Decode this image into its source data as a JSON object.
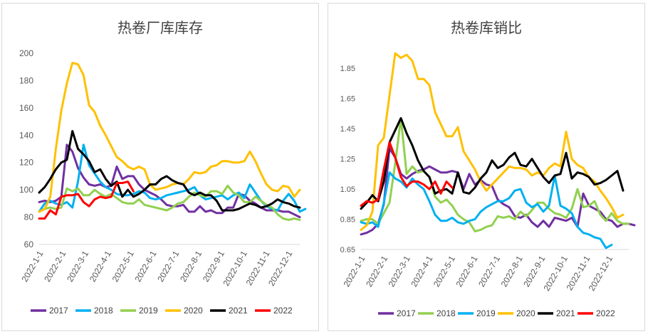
{
  "chart_data": [
    {
      "type": "line",
      "title": "热卷厂库库存",
      "ylim": [
        60,
        200
      ],
      "yticks": [
        60,
        80,
        100,
        120,
        140,
        160,
        180,
        200
      ],
      "grid": false,
      "legend_position": "bottom",
      "x_tick_labels": [
        "2022-1-1",
        "2022-2-1",
        "2022-3-1",
        "2022-4-1",
        "2022-5-1",
        "2022-6-1",
        "2022-7-1",
        "2022-8-1",
        "2022-9-1",
        "2022-10-1",
        "2022-11-1",
        "2022-12-1"
      ],
      "series": [
        {
          "name": "2017",
          "color": "#7030a0",
          "values": [
            91,
            92,
            91,
            92,
            95,
            133,
            128,
            116,
            109,
            104,
            103,
            104,
            102,
            103,
            117,
            108,
            110,
            110,
            104,
            100,
            98,
            96,
            93,
            89,
            88,
            88,
            89,
            84,
            84,
            88,
            84,
            85,
            83,
            83,
            87,
            87,
            97,
            96,
            92,
            90,
            87,
            85,
            85,
            85,
            84,
            84,
            82,
            80
          ]
        },
        {
          "name": "2018",
          "color": "#00b0f0",
          "values": [
            84,
            90,
            92,
            90,
            89,
            91,
            87,
            106,
            133,
            118,
            112,
            106,
            102,
            100,
            97,
            96,
            96,
            97,
            99,
            98,
            94,
            93,
            94,
            96,
            97,
            98,
            99,
            100,
            102,
            96,
            93,
            94,
            95,
            96,
            93,
            96,
            98,
            94,
            104,
            98,
            92,
            88,
            86,
            85,
            92,
            97,
            92,
            84,
            86
          ]
        },
        {
          "name": "2019",
          "color": "#92d050",
          "values": [
            84,
            86,
            87,
            86,
            87,
            101,
            99,
            101,
            96,
            96,
            100,
            97,
            95,
            97,
            94,
            91,
            90,
            90,
            93,
            89,
            88,
            87,
            86,
            85,
            87,
            90,
            91,
            95,
            98,
            96,
            95,
            99,
            99,
            97,
            103,
            98,
            96,
            91,
            91,
            95,
            92,
            89,
            87,
            82,
            79,
            78,
            79,
            78
          ]
        },
        {
          "name": "2020",
          "color": "#ffc000",
          "values": [
            84,
            86,
            95,
            130,
            158,
            178,
            193,
            192,
            184,
            162,
            157,
            147,
            140,
            132,
            124,
            121,
            117,
            115,
            117,
            115,
            104,
            100,
            101,
            102,
            104,
            105,
            104,
            108,
            113,
            112,
            113,
            117,
            118,
            121,
            121,
            120,
            120,
            121,
            128,
            121,
            112,
            104,
            100,
            99,
            103,
            102,
            95,
            100
          ]
        },
        {
          "name": "2021",
          "color": "#000000",
          "values": [
            98,
            102,
            108,
            115,
            120,
            122,
            143,
            130,
            126,
            121,
            113,
            115,
            108,
            103,
            106,
            95,
            100,
            95,
            97,
            100,
            104,
            104,
            108,
            110,
            107,
            105,
            104,
            98,
            96,
            98,
            96,
            96,
            92,
            85,
            85,
            85,
            86,
            88,
            90,
            89,
            87,
            88,
            90,
            93,
            91,
            90,
            88,
            87
          ]
        },
        {
          "name": "2022",
          "color": "#ff0000",
          "values": [
            79,
            79,
            85,
            82,
            95,
            96,
            96,
            97,
            91,
            88,
            93,
            95,
            94,
            95,
            105,
            105,
            106,
            99,
            null,
            null,
            null,
            null,
            null,
            null,
            null,
            null,
            null,
            null,
            null,
            null,
            null,
            null,
            null,
            null,
            null,
            null,
            null,
            null,
            null,
            null,
            null,
            null,
            null,
            null,
            null,
            null,
            null,
            null
          ]
        }
      ]
    },
    {
      "type": "line",
      "title": "热卷库销比",
      "ylim": [
        0.65,
        1.95
      ],
      "yticks": [
        "0.65",
        "0.85",
        "1.05",
        "1.25",
        "1.45",
        "1.65",
        "1.85"
      ],
      "grid": false,
      "legend_position": "bottom",
      "x_tick_labels": [
        "2022-1-1",
        "2022-2-1",
        "2022-3-1",
        "2022-4-1",
        "2022-5-1",
        "2022-6-1",
        "2022-7-1",
        "2022-8-1",
        "2022-9-1",
        "2022-10-1",
        "2022-11-1",
        "2022-12-1"
      ],
      "series": [
        {
          "name": "2017",
          "color": "#7030a0",
          "values": [
            0.75,
            0.76,
            0.78,
            0.82,
            0.95,
            1.32,
            1.26,
            1.15,
            1.12,
            1.15,
            1.17,
            1.18,
            1.2,
            1.18,
            1.16,
            1.16,
            1.17,
            1.16,
            1.05,
            1.15,
            1.08,
            1.11,
            1.08,
            1.07,
            0.98,
            0.95,
            0.93,
            0.87,
            0.86,
            0.88,
            0.83,
            0.8,
            0.84,
            0.8,
            0.86,
            0.85,
            0.84,
            0.86,
            0.8,
            1.02,
            0.94,
            0.92,
            0.9,
            0.85,
            0.84,
            0.8,
            0.82,
            0.82,
            0.81
          ]
        },
        {
          "name": "2018",
          "color": "#92d050",
          "values": [
            0.84,
            0.85,
            0.85,
            0.82,
            0.89,
            0.96,
            1.22,
            1.52,
            1.15,
            1.2,
            1.16,
            1.17,
            1.13,
            1.0,
            0.96,
            0.98,
            0.94,
            0.88,
            0.85,
            0.83,
            0.77,
            0.78,
            0.8,
            0.81,
            0.87,
            0.86,
            0.87,
            0.85,
            0.9,
            0.87,
            0.91,
            0.96,
            0.96,
            0.92,
            0.89,
            0.88,
            0.86,
            0.92,
            1.05,
            0.93,
            0.94,
            0.97,
            0.88,
            0.84,
            0.89,
            0.84,
            0.82,
            0.82
          ]
        },
        {
          "name": "2019",
          "color": "#00b0f0",
          "values": [
            0.83,
            0.82,
            0.83,
            0.8,
            0.96,
            1.16,
            1.12,
            1.1,
            1.06,
            1.12,
            1.08,
            1.05,
            0.97,
            0.88,
            0.84,
            0.84,
            0.86,
            0.83,
            0.82,
            0.84,
            0.85,
            0.9,
            0.93,
            0.95,
            0.97,
            0.97,
            0.99,
            1.04,
            1.05,
            0.96,
            0.93,
            0.95,
            0.9,
            0.94,
            1.14,
            0.94,
            0.92,
            0.89,
            0.8,
            0.76,
            0.75,
            0.73,
            0.72,
            0.66,
            0.68
          ]
        },
        {
          "name": "2020",
          "color": "#ffc000",
          "values": [
            0.78,
            0.81,
            0.9,
            1.34,
            1.39,
            1.67,
            1.95,
            1.92,
            1.94,
            1.9,
            1.78,
            1.78,
            1.74,
            1.56,
            1.48,
            1.4,
            1.4,
            1.46,
            1.3,
            1.24,
            1.18,
            1.1,
            1.04,
            1.08,
            1.12,
            1.16,
            1.2,
            1.19,
            1.19,
            1.18,
            1.14,
            1.16,
            1.14,
            1.19,
            1.22,
            1.2,
            1.43,
            1.25,
            1.21,
            1.19,
            1.13,
            1.1,
            1.04,
            0.99,
            0.93,
            0.86,
            0.88
          ]
        },
        {
          "name": "2021",
          "color": "#000000",
          "values": [
            0.92,
            0.96,
            1.01,
            0.97,
            1.1,
            1.36,
            1.44,
            1.52,
            1.42,
            1.34,
            1.24,
            1.17,
            1.13,
            1.02,
            1.04,
            1.05,
            1.02,
            1.16,
            1.03,
            1.02,
            1.06,
            1.12,
            1.16,
            1.24,
            1.19,
            1.21,
            1.26,
            1.29,
            1.21,
            1.2,
            1.25,
            1.19,
            1.13,
            1.09,
            1.14,
            1.15,
            1.29,
            1.12,
            1.16,
            1.15,
            1.13,
            1.08,
            1.09,
            1.11,
            1.14,
            1.17,
            1.04
          ]
        },
        {
          "name": "2022",
          "color": "#ff0000",
          "values": [
            0.94,
            0.97,
            0.96,
            0.98,
            1.18,
            1.36,
            1.26,
            1.13,
            1.07,
            1.1,
            1.1,
            1.08,
            1.05,
            1.1,
            1.02,
            1.1,
            1.06,
            null,
            null,
            null,
            null,
            null,
            null,
            null,
            null,
            null,
            null,
            null,
            null,
            null,
            null,
            null,
            null,
            null,
            null,
            null,
            null,
            null,
            null,
            null,
            null,
            null,
            null,
            null,
            null,
            null
          ]
        }
      ]
    }
  ]
}
